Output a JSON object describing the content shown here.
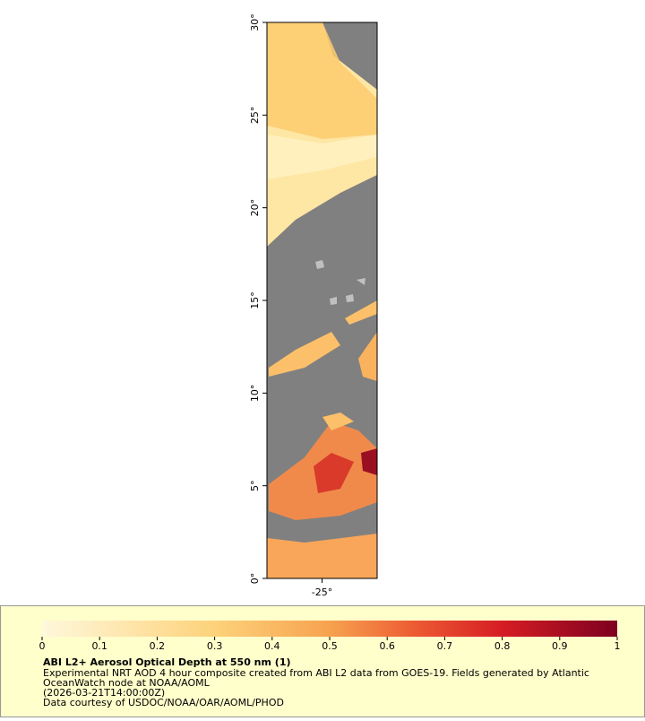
{
  "chart_data": {
    "type": "map",
    "title": "ABI L2+ Aerosol Optical Depth at 550 nm (1)",
    "description": [
      "Experimental NRT AOD 4 hour composite created from ABI L2 data from GOES-19. Fields generated by Atlantic",
      "OceanWatch node at NOAA/AOML",
      "(2026-03-21T14:00:00Z)",
      "Data courtesy of USDOC/NOAA/OAR/AOML/PHOD"
    ],
    "ylim": [
      0,
      30
    ],
    "yticks": [
      {
        "value": 0,
        "label": "0°"
      },
      {
        "value": 5,
        "label": "5°"
      },
      {
        "value": 10,
        "label": "10°"
      },
      {
        "value": 15,
        "label": "15°"
      },
      {
        "value": 20,
        "label": "20°"
      },
      {
        "value": 25,
        "label": "25°"
      },
      {
        "value": 30,
        "label": "30°"
      }
    ],
    "xlim": [
      -28,
      -22
    ],
    "xticks": [
      {
        "value": -25,
        "label": "-25°"
      }
    ],
    "colorbar": {
      "range": [
        0,
        1
      ],
      "ticks": [
        0,
        0.1,
        0.2,
        0.3,
        0.4,
        0.5,
        0.6,
        0.7,
        0.8,
        0.9,
        1
      ]
    }
  }
}
